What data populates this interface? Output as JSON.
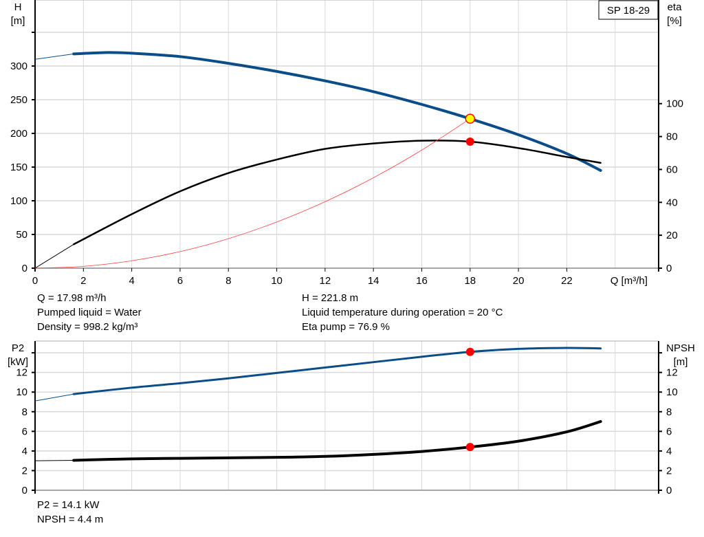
{
  "title_box": "SP 18-29",
  "info_top": {
    "q": "Q = 17.98 m³/h",
    "liquid": "Pumped liquid = Water",
    "density": "Density = 998.2 kg/m³",
    "h": "H = 221.8 m",
    "temperature": "Liquid temperature during operation = 20 °C",
    "eta": "Eta pump = 76.9 %"
  },
  "info_bottom": {
    "p2": "P2 = 14.1 kW",
    "npsh": "NPSH = 4.4 m"
  },
  "colors": {
    "head": "#0b4d88",
    "eta": "#000000",
    "system": "#ff4040",
    "point": "#ff0000",
    "duty_point": "#ffff00",
    "grid": "#d9d9d9"
  },
  "chart_data": [
    {
      "type": "line",
      "xlabel": "Q [m³/h]",
      "ylabel": "H",
      "ylabel_unit": "[m]",
      "y2label": "eta",
      "y2label_unit": "[%]",
      "xlim": [
        0,
        25.8
      ],
      "ylim": [
        0,
        398
      ],
      "y2lim": [
        0,
        163
      ],
      "xticks": [
        "0",
        "2",
        "4",
        "6",
        "8",
        "10",
        "12",
        "14",
        "16",
        "18",
        "20",
        "22"
      ],
      "yticks": [
        "0",
        "50",
        "100",
        "150",
        "200",
        "250",
        "300"
      ],
      "y2ticks": [
        "0",
        "20",
        "40",
        "60",
        "80",
        "100"
      ],
      "grid": true,
      "series": [
        {
          "id": "head",
          "axis": "left",
          "x": [
            0,
            1.6,
            3,
            4,
            6,
            8,
            10,
            12,
            14,
            16,
            18,
            20,
            22,
            23.4
          ],
          "y": [
            310,
            318,
            320,
            319,
            314,
            304,
            292,
            278,
            262,
            243,
            221.8,
            198,
            170,
            145
          ]
        },
        {
          "id": "eta",
          "axis": "right",
          "x": [
            0,
            1.6,
            4,
            6,
            8,
            10,
            12,
            14,
            16,
            18,
            20,
            22,
            23.4
          ],
          "y": [
            0,
            14.5,
            32.8,
            46.7,
            57.8,
            66,
            72.5,
            75.8,
            77.5,
            76.9,
            73,
            67.6,
            64
          ]
        },
        {
          "id": "system",
          "axis": "left",
          "x": [
            0,
            2,
            4,
            6,
            8,
            10,
            12,
            14,
            16,
            18
          ],
          "y": [
            0,
            2.7,
            11,
            24.6,
            43.8,
            68.5,
            98.6,
            134.2,
            175.3,
            221.8
          ]
        }
      ],
      "points": [
        {
          "id": "duty-point",
          "x": 18,
          "y": 221.8,
          "axis": "left"
        },
        {
          "id": "eta-point",
          "x": 18,
          "y": 76.9,
          "axis": "right"
        }
      ]
    },
    {
      "type": "line",
      "ylabel": "P2",
      "ylabel_unit": "[kW]",
      "y2label": "NPSH",
      "y2label_unit": "[m]",
      "xlim": [
        0,
        25.8
      ],
      "ylim": [
        0,
        15.2
      ],
      "y2lim": [
        0,
        15.2
      ],
      "yticks": [
        "0",
        "2",
        "4",
        "6",
        "8",
        "10",
        "12"
      ],
      "y2ticks": [
        "0",
        "2",
        "4",
        "6",
        "8",
        "10",
        "12"
      ],
      "grid": true,
      "series": [
        {
          "id": "p2",
          "axis": "left",
          "x": [
            0,
            1.6,
            4,
            6,
            8,
            10,
            12,
            14,
            16,
            18,
            20,
            22,
            23.4
          ],
          "y": [
            9.1,
            9.8,
            10.45,
            10.9,
            11.4,
            11.95,
            12.5,
            13.05,
            13.6,
            14.1,
            14.4,
            14.5,
            14.45
          ]
        },
        {
          "id": "npsh",
          "axis": "right",
          "x": [
            0,
            1.6,
            4,
            6,
            8,
            10,
            12,
            14,
            16,
            18,
            20,
            22,
            23.4
          ],
          "y": [
            3.0,
            3.05,
            3.2,
            3.25,
            3.3,
            3.35,
            3.45,
            3.65,
            3.95,
            4.4,
            5.0,
            5.95,
            7.0
          ]
        }
      ],
      "points": [
        {
          "id": "p2-point",
          "x": 18,
          "y": 14.1,
          "axis": "left"
        },
        {
          "id": "npsh-point",
          "x": 18,
          "y": 4.4,
          "axis": "right"
        }
      ]
    }
  ]
}
